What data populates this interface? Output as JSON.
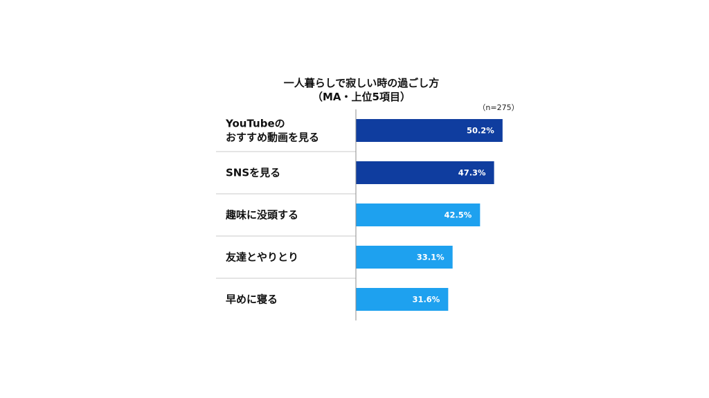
{
  "chart_data": {
    "type": "bar",
    "orientation": "horizontal",
    "title": "一人暮らしで寂しい時の過ごし方",
    "subtitle": "（MA・上位5項目）",
    "note": "（n=275）",
    "categories": [
      "YouTubeの\nおすすめ動画を見る",
      "SNSを見る",
      "趣味に没頭する",
      "友達とやりとり",
      "早めに寝る"
    ],
    "values": [
      50.2,
      47.3,
      42.5,
      33.1,
      31.6
    ],
    "value_labels": [
      "50.2%",
      "47.3%",
      "42.5%",
      "33.1%",
      "31.6%"
    ],
    "bar_colors": [
      "#0f3d9f",
      "#0f3d9f",
      "#1ea1ef",
      "#1ea1ef",
      "#1ea1ef"
    ],
    "xlim": [
      0,
      100
    ],
    "legend": "none",
    "grid": false
  }
}
